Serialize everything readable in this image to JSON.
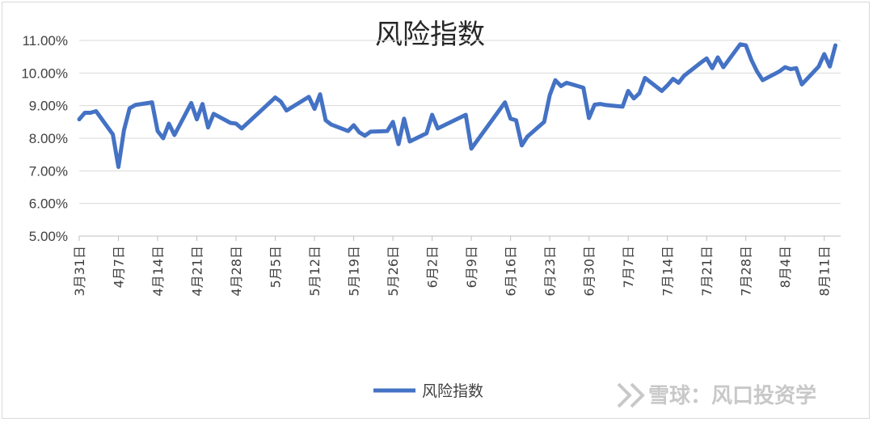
{
  "chart_data": {
    "type": "line",
    "title": "风险指数",
    "series_name": "风险指数",
    "color": "#4472C4",
    "ylim": [
      5.0,
      11.0
    ],
    "yticks": [
      "5.00%",
      "6.00%",
      "7.00%",
      "8.00%",
      "9.00%",
      "10.00%",
      "11.00%"
    ],
    "xtick_labels": [
      "3月31日",
      "4月7日",
      "4月14日",
      "4月21日",
      "4月28日",
      "5月5日",
      "5月12日",
      "5月19日",
      "5月26日",
      "6月2日",
      "6月9日",
      "6月16日",
      "6月23日",
      "6月30日",
      "7月7日",
      "7月14日",
      "7月21日",
      "7月28日",
      "8月4日",
      "8月11日"
    ],
    "x_start_date": "3月31日",
    "grid": true,
    "legend_position": "bottom",
    "points": [
      [
        "3月31日",
        8.58
      ],
      [
        "4月1日",
        8.78
      ],
      [
        "4月2日",
        8.78
      ],
      [
        "4月3日",
        8.83
      ],
      [
        "4月6日",
        8.12
      ],
      [
        "4月7日",
        7.12
      ],
      [
        "4月8日",
        8.25
      ],
      [
        "4月9日",
        8.92
      ],
      [
        "4月10日",
        9.02
      ],
      [
        "4月13日",
        9.1
      ],
      [
        "4月14日",
        8.22
      ],
      [
        "4月15日",
        8.0
      ],
      [
        "4月16日",
        8.45
      ],
      [
        "4月17日",
        8.1
      ],
      [
        "4月20日",
        9.08
      ],
      [
        "4月21日",
        8.58
      ],
      [
        "4月22日",
        9.05
      ],
      [
        "4月23日",
        8.33
      ],
      [
        "4月24日",
        8.75
      ],
      [
        "4月27日",
        8.47
      ],
      [
        "4月28日",
        8.45
      ],
      [
        "4月29日",
        8.3
      ],
      [
        "5月5日",
        9.25
      ],
      [
        "5月6日",
        9.12
      ],
      [
        "5月7日",
        8.85
      ],
      [
        "5月11日",
        9.27
      ],
      [
        "5月12日",
        8.9
      ],
      [
        "5月13日",
        9.35
      ],
      [
        "5月14日",
        8.55
      ],
      [
        "5月15日",
        8.42
      ],
      [
        "5月18日",
        8.22
      ],
      [
        "5月19日",
        8.4
      ],
      [
        "5月20日",
        8.18
      ],
      [
        "5月21日",
        8.08
      ],
      [
        "5月22日",
        8.2
      ],
      [
        "5月25日",
        8.22
      ],
      [
        "5月26日",
        8.5
      ],
      [
        "5月27日",
        7.82
      ],
      [
        "5月28日",
        8.6
      ],
      [
        "5月29日",
        7.9
      ],
      [
        "6月1日",
        8.15
      ],
      [
        "6月2日",
        8.72
      ],
      [
        "6月3日",
        8.3
      ],
      [
        "6月8日",
        8.72
      ],
      [
        "6月9日",
        7.68
      ],
      [
        "6月15日",
        9.1
      ],
      [
        "6月16日",
        8.6
      ],
      [
        "6月17日",
        8.55
      ],
      [
        "6月18日",
        7.78
      ],
      [
        "6月19日",
        8.05
      ],
      [
        "6月22日",
        8.5
      ],
      [
        "6月23日",
        9.32
      ],
      [
        "6月24日",
        9.78
      ],
      [
        "6月25日",
        9.6
      ],
      [
        "6月26日",
        9.7
      ],
      [
        "6月29日",
        9.55
      ],
      [
        "6月30日",
        8.62
      ],
      [
        "7月1日",
        9.03
      ],
      [
        "7月2日",
        9.05
      ],
      [
        "7月3日",
        9.02
      ],
      [
        "7月6日",
        8.97
      ],
      [
        "7月7日",
        9.45
      ],
      [
        "7月8日",
        9.22
      ],
      [
        "7月9日",
        9.38
      ],
      [
        "7月10日",
        9.85
      ],
      [
        "7月13日",
        9.45
      ],
      [
        "7月14日",
        9.62
      ],
      [
        "7月15日",
        9.82
      ],
      [
        "7月16日",
        9.7
      ],
      [
        "7月17日",
        9.92
      ],
      [
        "7月20日",
        10.32
      ],
      [
        "7月21日",
        10.45
      ],
      [
        "7月22日",
        10.15
      ],
      [
        "7月23日",
        10.48
      ],
      [
        "7月24日",
        10.18
      ],
      [
        "7月27日",
        10.88
      ],
      [
        "7月28日",
        10.85
      ],
      [
        "7月29日",
        10.4
      ],
      [
        "7月30日",
        10.05
      ],
      [
        "7月31日",
        9.78
      ],
      [
        "8月3日",
        10.05
      ],
      [
        "8月4日",
        10.18
      ],
      [
        "8月5日",
        10.12
      ],
      [
        "8月6日",
        10.15
      ],
      [
        "8月7日",
        9.65
      ],
      [
        "8月10日",
        10.2
      ],
      [
        "8月11日",
        10.58
      ],
      [
        "8月12日",
        10.2
      ],
      [
        "8月13日",
        10.85
      ]
    ]
  },
  "watermark": {
    "icon": "snowball-logo-icon",
    "text": "雪球：风口投资学"
  }
}
